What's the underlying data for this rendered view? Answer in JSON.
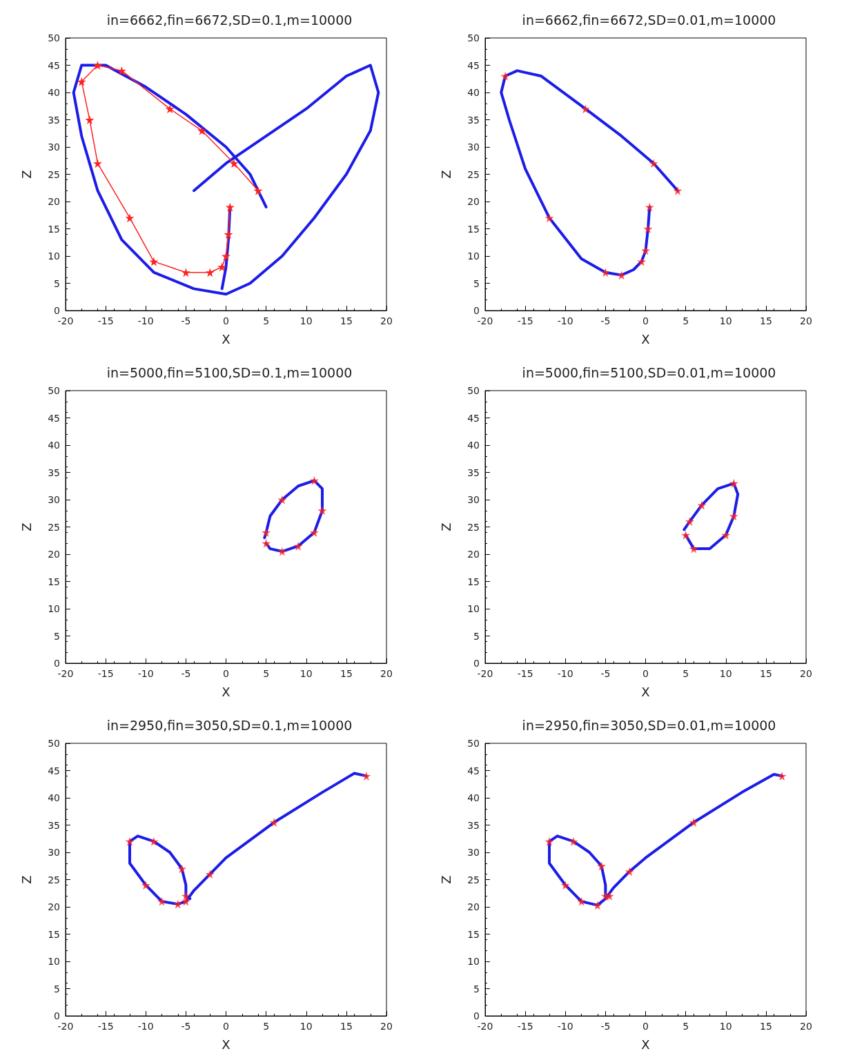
{
  "chart_data": [
    {
      "type": "line",
      "title": "in=6662,fin=6672,SD=0.1,m=10000",
      "xlabel": "X",
      "ylabel": "Z",
      "xlim": [
        -20,
        20
      ],
      "xticks": [
        -20,
        -15,
        -10,
        -5,
        0,
        5,
        10,
        15,
        20
      ],
      "ylim": [
        0,
        50
      ],
      "yticks": [
        0,
        5,
        10,
        15,
        20,
        25,
        30,
        35,
        40,
        45,
        50
      ],
      "series": [
        {
          "color": "#1c1ce8",
          "marker": "none",
          "x": [
            -4,
            0,
            5,
            10,
            15,
            18,
            19,
            18,
            15,
            11,
            7,
            3,
            0,
            -4,
            -9,
            -13,
            -16,
            -18,
            -19,
            -18,
            -15,
            -10,
            -5,
            0,
            3,
            5
          ],
          "values": [
            22,
            27,
            32,
            37,
            43,
            45,
            40,
            33,
            25,
            17,
            10,
            5,
            3,
            4,
            7,
            13,
            22,
            32,
            40,
            45,
            45,
            41,
            36,
            30,
            25,
            19
          ]
        },
        {
          "color": "#1c1ce8",
          "marker": "none",
          "x": [
            0.5,
            0.3,
            0,
            -0.5
          ],
          "values": [
            19,
            13,
            8,
            4
          ]
        },
        {
          "color": "#ff2020",
          "marker": "star",
          "x": [
            0.5,
            0.3,
            0,
            -0.5,
            -2,
            -5,
            -9,
            -12,
            -16,
            -17,
            -18,
            -16,
            -13,
            -7,
            -3,
            1,
            4
          ],
          "values": [
            19,
            14,
            10,
            8,
            7,
            7,
            9,
            17,
            27,
            35,
            42,
            45,
            44,
            37,
            33,
            27,
            22
          ]
        }
      ]
    },
    {
      "type": "line",
      "title": "in=6662,fin=6672,SD=0.01,m=10000",
      "xlabel": "X",
      "ylabel": "Z",
      "xlim": [
        -20,
        20
      ],
      "xticks": [
        -20,
        -15,
        -10,
        -5,
        0,
        5,
        10,
        15,
        20
      ],
      "ylim": [
        0,
        50
      ],
      "yticks": [
        0,
        5,
        10,
        15,
        20,
        25,
        30,
        35,
        40,
        45,
        50
      ],
      "series": [
        {
          "color": "#1c1ce8",
          "marker": "none",
          "x": [
            0.5,
            0.3,
            0,
            -0.5,
            -1.5,
            -3,
            -5,
            -8,
            -12,
            -15,
            -17,
            -18,
            -17.5,
            -16,
            -13,
            -7.5,
            -3,
            1,
            4
          ],
          "values": [
            19,
            15,
            11,
            9,
            7.5,
            6.5,
            7,
            9.5,
            17,
            26,
            35,
            40,
            43,
            44,
            43,
            37,
            32,
            27,
            22
          ]
        },
        {
          "type": "scatter",
          "color": "#ff2020",
          "marker": "star",
          "x": [
            0.5,
            0.3,
            0,
            -0.5,
            -3,
            -5,
            -12,
            -17.5,
            -7.5,
            1,
            4
          ],
          "values": [
            19,
            15,
            11,
            9,
            6.5,
            7,
            17,
            43,
            37,
            27,
            22
          ]
        }
      ]
    },
    {
      "type": "line",
      "title": "in=5000,fin=5100,SD=0.1,m=10000",
      "xlabel": "X",
      "ylabel": "Z",
      "xlim": [
        -20,
        20
      ],
      "xticks": [
        -20,
        -15,
        -10,
        -5,
        0,
        5,
        10,
        15,
        20
      ],
      "ylim": [
        0,
        50
      ],
      "yticks": [
        0,
        5,
        10,
        15,
        20,
        25,
        30,
        35,
        40,
        45,
        50
      ],
      "series": [
        {
          "color": "#1c1ce8",
          "marker": "none",
          "x": [
            5,
            5.5,
            7,
            9,
            11,
            12,
            12,
            11,
            9,
            7,
            5.5,
            5,
            4.8
          ],
          "values": [
            22,
            21,
            20.5,
            21.5,
            24,
            28,
            32,
            33.5,
            32.5,
            30,
            27,
            24,
            23
          ]
        },
        {
          "type": "scatter",
          "color": "#ff2020",
          "marker": "star",
          "x": [
            5,
            7,
            9,
            11,
            12,
            11,
            7,
            5
          ],
          "values": [
            22,
            20.5,
            21.5,
            24,
            28,
            33.5,
            30,
            24
          ]
        }
      ]
    },
    {
      "type": "line",
      "title": "in=5000,fin=5100,SD=0.01,m=10000",
      "xlabel": "X",
      "ylabel": "Z",
      "xlim": [
        -20,
        20
      ],
      "xticks": [
        -20,
        -15,
        -10,
        -5,
        0,
        5,
        10,
        15,
        20
      ],
      "ylim": [
        0,
        50
      ],
      "yticks": [
        0,
        5,
        10,
        15,
        20,
        25,
        30,
        35,
        40,
        45,
        50
      ],
      "series": [
        {
          "color": "#1c1ce8",
          "marker": "none",
          "x": [
            5,
            6,
            8,
            10,
            11,
            11.5,
            11,
            9,
            7,
            5.5,
            4.8
          ],
          "values": [
            23.5,
            21,
            21,
            23.5,
            27,
            31,
            33,
            32,
            29,
            26,
            24.5
          ]
        },
        {
          "type": "scatter",
          "color": "#ff2020",
          "marker": "star",
          "x": [
            5,
            6,
            10,
            11,
            11,
            7,
            5.5
          ],
          "values": [
            23.5,
            21,
            23.5,
            27,
            33,
            29,
            26
          ]
        }
      ]
    },
    {
      "type": "line",
      "title": "in=2950,fin=3050,SD=0.1,m=10000",
      "xlabel": "X",
      "ylabel": "Z",
      "xlim": [
        -20,
        20
      ],
      "xticks": [
        -20,
        -15,
        -10,
        -5,
        0,
        5,
        10,
        15,
        20
      ],
      "ylim": [
        0,
        50
      ],
      "yticks": [
        0,
        5,
        10,
        15,
        20,
        25,
        30,
        35,
        40,
        45,
        50
      ],
      "series": [
        {
          "color": "#1c1ce8",
          "marker": "none",
          "x": [
            17.5,
            16,
            12,
            6,
            0,
            -2,
            -4,
            -5,
            -6,
            -8,
            -10,
            -12,
            -12,
            -11,
            -9,
            -7,
            -5.5,
            -5,
            -5,
            -4.5
          ],
          "values": [
            44,
            44.5,
            41,
            35.5,
            29,
            26,
            23,
            21,
            20.5,
            21,
            24,
            28,
            32,
            33,
            32,
            30,
            27,
            24,
            22,
            21.5
          ]
        },
        {
          "type": "scatter",
          "color": "#ff2020",
          "marker": "star",
          "x": [
            17.5,
            6,
            -2,
            -5,
            -6,
            -8,
            -10,
            -12,
            -9,
            -5.5,
            -5
          ],
          "values": [
            44,
            35.5,
            26,
            21,
            20.5,
            21,
            24,
            32,
            32,
            27,
            22
          ]
        }
      ]
    },
    {
      "type": "line",
      "title": "in=2950,fin=3050,SD=0.01,m=10000",
      "xlabel": "X",
      "ylabel": "Z",
      "xlim": [
        -20,
        20
      ],
      "xticks": [
        -20,
        -15,
        -10,
        -5,
        0,
        5,
        10,
        15,
        20
      ],
      "ylim": [
        0,
        50
      ],
      "yticks": [
        0,
        5,
        10,
        15,
        20,
        25,
        30,
        35,
        40,
        45,
        50
      ],
      "series": [
        {
          "color": "#1c1ce8",
          "marker": "none",
          "x": [
            17,
            16,
            12,
            6,
            0,
            -2,
            -4,
            -5,
            -6,
            -8,
            -10,
            -12,
            -12,
            -11,
            -9,
            -7,
            -5.5,
            -5,
            -5,
            -4.5
          ],
          "values": [
            44,
            44.3,
            41,
            35.5,
            29,
            26.5,
            23.5,
            21.5,
            20.3,
            21,
            24,
            28,
            32,
            33,
            32,
            30,
            27.5,
            24,
            22,
            22
          ]
        },
        {
          "type": "scatter",
          "color": "#ff2020",
          "marker": "star",
          "x": [
            17,
            6,
            -2,
            -4.5,
            -6,
            -8,
            -10,
            -12,
            -9,
            -5.5,
            -5
          ],
          "values": [
            44,
            35.5,
            26.5,
            22,
            20.3,
            21,
            24,
            32,
            32,
            27.5,
            22
          ]
        }
      ]
    }
  ]
}
